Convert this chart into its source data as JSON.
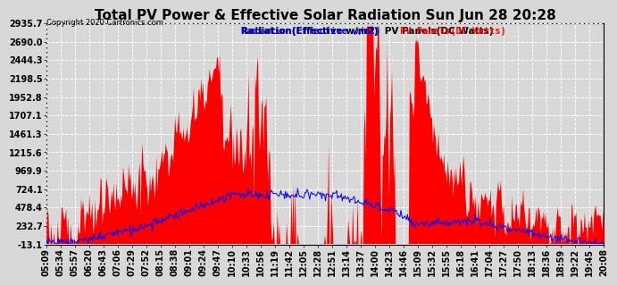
{
  "title": "Total PV Power & Effective Solar Radiation Sun Jun 28 20:28",
  "copyright": "Copyright 2020 Cartronics.com",
  "legend_blue": "Radiation(Effective w/m2)",
  "legend_red": "PV Panels(DC Watts)",
  "yticks": [
    2935.7,
    2690.0,
    2444.3,
    2198.5,
    1952.8,
    1707.1,
    1461.3,
    1215.6,
    969.9,
    724.1,
    478.4,
    232.7,
    -13.1
  ],
  "ymin": -13.1,
  "ymax": 2935.7,
  "bg_color": "#d8d8d8",
  "plot_bg": "#d8d8d8",
  "x_labels": [
    "05:09",
    "05:34",
    "05:57",
    "06:20",
    "06:43",
    "07:06",
    "07:29",
    "07:52",
    "08:15",
    "08:38",
    "09:01",
    "09:24",
    "09:47",
    "10:10",
    "10:33",
    "10:56",
    "11:19",
    "11:42",
    "12:05",
    "12:28",
    "12:51",
    "13:14",
    "13:37",
    "14:00",
    "14:23",
    "14:46",
    "15:09",
    "15:32",
    "15:55",
    "16:18",
    "16:41",
    "17:04",
    "17:27",
    "17:50",
    "18:13",
    "18:36",
    "18:59",
    "19:22",
    "19:45",
    "20:08"
  ],
  "grid_color": "#ffffff",
  "red_color": "#ff0000",
  "blue_color": "#0000ff",
  "title_fontsize": 11,
  "tick_fontsize": 7,
  "label_fontsize": 7.5
}
